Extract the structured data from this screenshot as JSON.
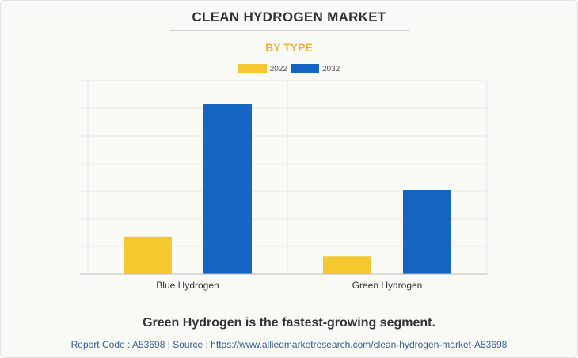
{
  "header": {
    "title": "CLEAN HYDROGEN MARKET",
    "subtitle": "BY TYPE"
  },
  "chart_data": {
    "type": "bar",
    "categories": [
      "Blue Hydrogen",
      "Green Hydrogen"
    ],
    "series": [
      {
        "name": "2022",
        "color": "#f5c830",
        "values": [
          1.35,
          0.65
        ]
      },
      {
        "name": "2032",
        "color": "#1565c4",
        "values": [
          6.15,
          3.05
        ]
      }
    ],
    "ylim": [
      0,
      7
    ],
    "grid": true,
    "legend_placement": "top-center",
    "xlabel": "",
    "ylabel": ""
  },
  "footer": {
    "headline": "Green Hydrogen is the fastest-growing segment.",
    "report": "Report Code : A53698  |  Source : https://www.alliedmarketresearch.com/clean-hydrogen-market-A53698"
  }
}
